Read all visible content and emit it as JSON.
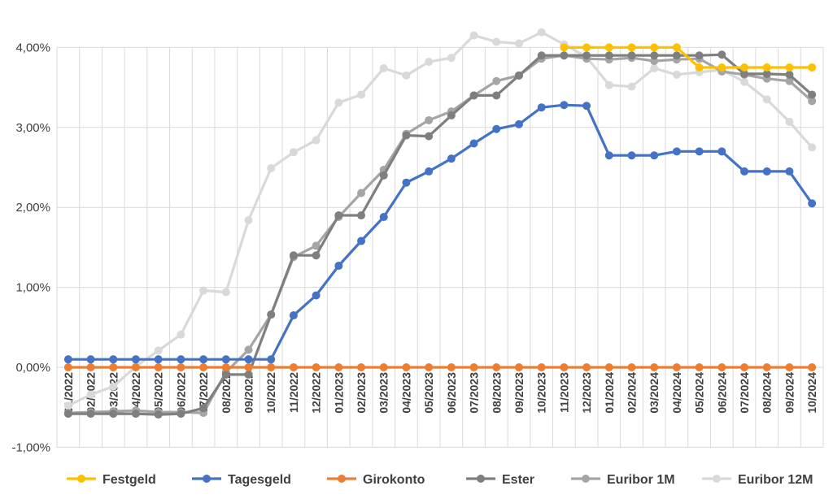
{
  "chart_data": {
    "type": "line",
    "title": "",
    "xlabel": "",
    "ylabel": "",
    "ylim": [
      -1,
      4
    ],
    "y_tick_step": 1,
    "y_tick_labels": [
      "-1,00%",
      "0,00%",
      "1,00%",
      "2,00%",
      "3,00%",
      "4,00%"
    ],
    "grid": true,
    "legend_position": "bottom",
    "categories": [
      "01/2022",
      "02/2022",
      "03/2022",
      "04/2022",
      "05/2022",
      "06/2022",
      "07/2022",
      "08/2022",
      "09/2022",
      "10/2022",
      "11/2022",
      "12/2022",
      "01/2023",
      "02/2023",
      "03/2023",
      "04/2023",
      "05/2023",
      "06/2023",
      "07/2023",
      "08/2023",
      "09/2023",
      "10/2023",
      "11/2023",
      "12/2023",
      "01/2024",
      "02/2024",
      "03/2024",
      "04/2024",
      "05/2024",
      "06/2024",
      "07/2024",
      "08/2024",
      "09/2024",
      "10/2024"
    ],
    "series": [
      {
        "name": "Euribor 12M",
        "color": "#d9d9d9",
        "values": [
          -0.48,
          -0.34,
          -0.24,
          0.01,
          0.21,
          0.41,
          0.96,
          0.94,
          1.84,
          2.49,
          2.69,
          2.84,
          3.31,
          3.41,
          3.74,
          3.65,
          3.82,
          3.87,
          4.15,
          4.07,
          4.05,
          4.19,
          4.04,
          3.88,
          3.53,
          3.51,
          3.74,
          3.66,
          3.69,
          3.72,
          3.57,
          3.35,
          3.07,
          2.75
        ]
      },
      {
        "name": "Euribor 1M",
        "color": "#a5a5a5",
        "values": [
          -0.57,
          -0.56,
          -0.55,
          -0.54,
          -0.56,
          -0.56,
          -0.57,
          -0.06,
          0.22,
          0.66,
          1.38,
          1.52,
          1.88,
          2.18,
          2.47,
          2.92,
          3.09,
          3.2,
          3.4,
          3.58,
          3.65,
          3.86,
          3.9,
          3.86,
          3.85,
          3.87,
          3.83,
          3.85,
          3.86,
          3.7,
          3.66,
          3.61,
          3.58,
          3.33
        ]
      },
      {
        "name": "Ester",
        "color": "#7f7f7f",
        "values": [
          -0.58,
          -0.58,
          -0.58,
          -0.58,
          -0.59,
          -0.58,
          -0.51,
          -0.09,
          -0.09,
          0.66,
          1.4,
          1.4,
          1.9,
          1.9,
          2.4,
          2.9,
          2.89,
          3.15,
          3.4,
          3.4,
          3.65,
          3.9,
          3.9,
          3.9,
          3.9,
          3.9,
          3.9,
          3.9,
          3.9,
          3.91,
          3.67,
          3.67,
          3.66,
          3.41
        ]
      },
      {
        "name": "Festgeld",
        "color": "#ffc000",
        "values": [
          null,
          null,
          null,
          null,
          null,
          null,
          null,
          null,
          null,
          null,
          null,
          null,
          null,
          null,
          null,
          null,
          null,
          null,
          null,
          null,
          null,
          null,
          4.0,
          4.0,
          4.0,
          4.0,
          4.0,
          4.0,
          3.75,
          3.75,
          3.75,
          3.75,
          3.75,
          3.75
        ]
      },
      {
        "name": "Tagesgeld",
        "color": "#4472c4",
        "values": [
          0.1,
          0.1,
          0.1,
          0.1,
          0.1,
          0.1,
          0.1,
          0.1,
          0.1,
          0.1,
          0.65,
          0.9,
          1.27,
          1.58,
          1.88,
          2.31,
          2.45,
          2.61,
          2.8,
          2.98,
          3.04,
          3.25,
          3.28,
          3.27,
          2.65,
          2.65,
          2.65,
          2.7,
          2.7,
          2.7,
          2.45,
          2.45,
          2.45,
          2.05
        ]
      },
      {
        "name": "Girokonto",
        "color": "#ed7d31",
        "values": [
          0,
          0,
          0,
          0,
          0,
          0,
          0,
          0,
          0,
          0,
          0,
          0,
          0,
          0,
          0,
          0,
          0,
          0,
          0,
          0,
          0,
          0,
          0,
          0,
          0,
          0,
          0,
          0,
          0,
          0,
          0,
          0,
          0,
          0
        ]
      }
    ],
    "legend_order": [
      "Festgeld",
      "Tagesgeld",
      "Girokonto",
      "Ester",
      "Euribor 1M",
      "Euribor 12M"
    ]
  }
}
